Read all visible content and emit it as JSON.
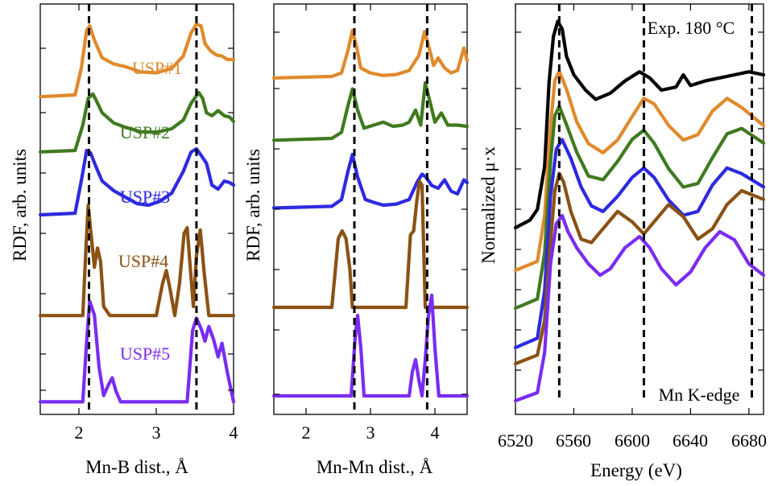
{
  "chart_data": [
    {
      "type": "line",
      "xlabel": "Mn-B dist., Å",
      "ylabel": "RDF, arb. units",
      "xlim": [
        1.5,
        4.0
      ],
      "xticks": [
        "2",
        "3",
        "4"
      ],
      "dashed_lines_x": [
        2.13,
        3.52
      ],
      "series": [
        {
          "name": "USP#1",
          "color": "#e08a2c",
          "offset": 0,
          "x": [
            1.5,
            1.95,
            2.03,
            2.1,
            2.14,
            2.2,
            2.3,
            2.45,
            2.6,
            2.8,
            3.0,
            3.2,
            3.35,
            3.45,
            3.52,
            3.58,
            3.63,
            3.7,
            3.78,
            3.85,
            3.92,
            4.0
          ],
          "y": [
            0.18,
            0.2,
            0.5,
            0.93,
            0.98,
            0.82,
            0.62,
            0.55,
            0.52,
            0.46,
            0.45,
            0.5,
            0.64,
            0.9,
            1.0,
            0.98,
            0.78,
            0.7,
            0.65,
            0.64,
            0.6,
            0.6
          ]
        },
        {
          "name": "USP#2",
          "color": "#3f7a1f",
          "offset": 0,
          "x": [
            1.5,
            1.95,
            2.05,
            2.12,
            2.18,
            2.22,
            2.3,
            2.45,
            2.6,
            2.8,
            3.0,
            3.2,
            3.35,
            3.45,
            3.55,
            3.6,
            3.65,
            3.72,
            3.8,
            3.88,
            3.95,
            4.0
          ],
          "y": [
            0.18,
            0.2,
            0.55,
            0.92,
            0.98,
            0.9,
            0.72,
            0.58,
            0.52,
            0.46,
            0.45,
            0.5,
            0.62,
            0.85,
            1.0,
            0.92,
            0.72,
            0.68,
            0.75,
            0.68,
            0.66,
            0.6
          ]
        },
        {
          "name": "USP#3",
          "color": "#2d2ae0",
          "offset": 0,
          "x": [
            1.5,
            1.95,
            2.03,
            2.1,
            2.15,
            2.22,
            2.3,
            2.45,
            2.6,
            2.75,
            2.9,
            3.05,
            3.2,
            3.35,
            3.45,
            3.52,
            3.58,
            3.65,
            3.72,
            3.8,
            3.88,
            3.95,
            4.0
          ],
          "y": [
            0.18,
            0.2,
            0.6,
            0.98,
            0.95,
            0.78,
            0.6,
            0.48,
            0.4,
            0.32,
            0.3,
            0.35,
            0.45,
            0.72,
            0.96,
            1.0,
            0.92,
            0.82,
            0.55,
            0.5,
            0.6,
            0.58,
            0.55
          ]
        },
        {
          "name": "USP#4",
          "color": "#8b5214",
          "offset": 0,
          "x": [
            1.5,
            2.05,
            2.09,
            2.12,
            2.16,
            2.2,
            2.24,
            2.28,
            2.32,
            2.4,
            3.0,
            3.08,
            3.13,
            3.18,
            3.24,
            3.3,
            3.36,
            3.4,
            3.44,
            3.48,
            3.52,
            3.57,
            3.62,
            3.68,
            4.0
          ],
          "y": [
            0.02,
            0.02,
            0.6,
            1.0,
            0.72,
            0.45,
            0.62,
            0.5,
            0.1,
            0.02,
            0.02,
            0.3,
            0.42,
            0.25,
            0.02,
            0.3,
            0.75,
            0.8,
            0.45,
            0.1,
            0.55,
            0.78,
            0.4,
            0.02,
            0.02
          ]
        },
        {
          "name": "USP#5",
          "color": "#7a2cf0",
          "offset": 0,
          "x": [
            1.5,
            2.05,
            2.1,
            2.14,
            2.2,
            2.26,
            2.32,
            2.38,
            2.43,
            2.48,
            2.54,
            3.4,
            3.47,
            3.52,
            3.58,
            3.63,
            3.68,
            3.74,
            3.8,
            3.85,
            3.92,
            4.0
          ],
          "y": [
            0.02,
            0.02,
            0.6,
            0.98,
            0.85,
            0.35,
            0.08,
            0.18,
            0.25,
            0.12,
            0.02,
            0.02,
            0.7,
            0.82,
            0.72,
            0.6,
            0.74,
            0.62,
            0.45,
            0.58,
            0.3,
            0.02
          ]
        }
      ]
    },
    {
      "type": "line",
      "xlabel": "Mn-Mn dist., Å",
      "ylabel": "RDF, arb. units",
      "xlim": [
        1.5,
        4.5
      ],
      "xticks": [
        "2",
        "3",
        "4"
      ],
      "dashed_lines_x": [
        2.75,
        3.88
      ],
      "series": [
        {
          "name": "USP#1",
          "color": "#e08a2c",
          "x": [
            1.5,
            2.4,
            2.55,
            2.65,
            2.72,
            2.78,
            2.85,
            3.0,
            3.2,
            3.4,
            3.6,
            3.75,
            3.84,
            3.9,
            3.98,
            4.05,
            4.15,
            4.25,
            4.35,
            4.45,
            4.5
          ],
          "y": [
            0.05,
            0.08,
            0.15,
            0.6,
            1.0,
            0.7,
            0.25,
            0.15,
            0.1,
            0.12,
            0.2,
            0.5,
            0.98,
            0.7,
            0.3,
            0.45,
            0.25,
            0.15,
            0.2,
            0.65,
            0.4
          ]
        },
        {
          "name": "USP#2",
          "color": "#3f7a1f",
          "x": [
            1.5,
            2.4,
            2.55,
            2.65,
            2.72,
            2.8,
            2.9,
            3.05,
            3.2,
            3.35,
            3.5,
            3.6,
            3.7,
            3.78,
            3.85,
            3.92,
            4.0,
            4.1,
            4.2,
            4.35,
            4.5
          ],
          "y": [
            0.05,
            0.08,
            0.18,
            0.62,
            0.9,
            0.55,
            0.25,
            0.3,
            0.35,
            0.28,
            0.3,
            0.35,
            0.55,
            0.3,
            1.0,
            0.7,
            0.35,
            0.5,
            0.3,
            0.3,
            0.28
          ]
        },
        {
          "name": "USP#3",
          "color": "#2d2ae0",
          "x": [
            1.5,
            2.4,
            2.55,
            2.65,
            2.72,
            2.8,
            2.92,
            3.05,
            3.2,
            3.4,
            3.6,
            3.72,
            3.8,
            3.86,
            3.95,
            4.05,
            4.15,
            4.25,
            4.35,
            4.45,
            4.5
          ],
          "y": [
            0.05,
            0.08,
            0.2,
            0.7,
            1.0,
            0.6,
            0.2,
            0.15,
            0.1,
            0.12,
            0.2,
            0.5,
            0.65,
            0.6,
            0.45,
            0.4,
            0.55,
            0.35,
            0.3,
            0.55,
            0.5
          ]
        },
        {
          "name": "USP#4",
          "color": "#8b5214",
          "x": [
            1.5,
            2.4,
            2.45,
            2.5,
            2.56,
            2.62,
            2.68,
            2.72,
            3.55,
            3.62,
            3.67,
            3.72,
            3.76,
            3.8,
            3.85,
            4.5
          ],
          "y": [
            0.0,
            0.0,
            0.45,
            0.9,
            1.0,
            0.9,
            0.5,
            0.0,
            0.0,
            0.95,
            1.0,
            1.4,
            1.65,
            1.6,
            0.0,
            0.0
          ]
        },
        {
          "name": "USP#5",
          "color": "#7a2cf0",
          "x": [
            1.5,
            2.7,
            2.76,
            2.8,
            2.85,
            2.9,
            3.6,
            3.65,
            3.7,
            3.75,
            3.8,
            3.85,
            3.9,
            3.95,
            4.0,
            4.06,
            4.5
          ],
          "y": [
            0.0,
            0.0,
            0.7,
            1.0,
            0.6,
            0.0,
            0.0,
            0.3,
            0.45,
            0.2,
            0.0,
            0.45,
            1.0,
            1.25,
            0.6,
            0.0,
            0.0
          ]
        }
      ]
    },
    {
      "type": "line",
      "xlabel": "Energy (eV)",
      "ylabel": "Normalized μ·x",
      "xlim": [
        6520,
        6690
      ],
      "xticks": [
        "6520",
        "6560",
        "6600",
        "6640",
        "6680"
      ],
      "dashed_lines_x": [
        6550,
        6608,
        6682
      ],
      "annotations": [
        "Exp. 180 °C",
        "Mn K-edge"
      ],
      "series": [
        {
          "name": "Exp. 180 °C",
          "color": "#000000",
          "x": [
            6520,
            6530,
            6535,
            6540,
            6543,
            6546,
            6549,
            6552,
            6555,
            6560,
            6568,
            6575,
            6585,
            6595,
            6605,
            6612,
            6620,
            6630,
            6635,
            6640,
            6650,
            6660,
            6670,
            6680,
            6690
          ],
          "y": [
            0.0,
            0.05,
            0.12,
            0.4,
            0.95,
            1.25,
            1.35,
            1.3,
            1.12,
            1.0,
            0.9,
            0.84,
            0.88,
            0.96,
            1.02,
            0.98,
            0.9,
            0.92,
            1.0,
            0.93,
            0.96,
            0.98,
            1.0,
            1.02,
            1.0
          ]
        },
        {
          "name": "USP#1",
          "color": "#e08a2c",
          "x": [
            6520,
            6535,
            6540,
            6544,
            6547,
            6550,
            6555,
            6562,
            6570,
            6580,
            6590,
            6600,
            6608,
            6615,
            6625,
            6635,
            6645,
            6655,
            6665,
            6675,
            6690
          ],
          "y": [
            0.0,
            0.05,
            0.3,
            0.8,
            1.05,
            1.1,
            1.0,
            0.82,
            0.7,
            0.65,
            0.72,
            0.85,
            0.95,
            0.92,
            0.8,
            0.72,
            0.75,
            0.88,
            0.95,
            0.9,
            0.8
          ]
        },
        {
          "name": "USP#2",
          "color": "#3f7a1f",
          "x": [
            6520,
            6535,
            6540,
            6544,
            6547,
            6550,
            6555,
            6562,
            6570,
            6580,
            6590,
            6600,
            6608,
            6615,
            6625,
            6635,
            6645,
            6655,
            6665,
            6675,
            6690
          ],
          "y": [
            0.0,
            0.05,
            0.3,
            0.8,
            1.05,
            1.1,
            1.0,
            0.85,
            0.72,
            0.7,
            0.8,
            0.92,
            0.97,
            0.9,
            0.76,
            0.66,
            0.68,
            0.82,
            0.95,
            0.98,
            0.9
          ]
        },
        {
          "name": "USP#3",
          "color": "#2d2ae0",
          "x": [
            6520,
            6535,
            6540,
            6544,
            6548,
            6552,
            6558,
            6565,
            6572,
            6580,
            6590,
            6600,
            6608,
            6615,
            6625,
            6635,
            6645,
            6655,
            6665,
            6675,
            6690
          ],
          "y": [
            0.0,
            0.05,
            0.3,
            0.8,
            1.05,
            1.1,
            1.0,
            0.85,
            0.75,
            0.72,
            0.8,
            0.9,
            0.95,
            0.9,
            0.78,
            0.7,
            0.72,
            0.86,
            0.95,
            0.92,
            0.85
          ]
        },
        {
          "name": "USP#4",
          "color": "#8b5214",
          "x": [
            6520,
            6535,
            6540,
            6544,
            6547,
            6550,
            6553,
            6558,
            6565,
            6572,
            6580,
            6590,
            6600,
            6608,
            6615,
            6625,
            6635,
            6645,
            6655,
            6665,
            6675,
            6690
          ],
          "y": [
            0.0,
            0.05,
            0.25,
            0.7,
            1.0,
            1.1,
            1.05,
            0.88,
            0.72,
            0.7,
            0.78,
            0.88,
            0.82,
            0.75,
            0.82,
            0.92,
            0.85,
            0.72,
            0.78,
            0.92,
            1.0,
            0.95
          ]
        },
        {
          "name": "USP#5",
          "color": "#7a2cf0",
          "x": [
            6520,
            6535,
            6540,
            6544,
            6548,
            6552,
            6556,
            6562,
            6570,
            6578,
            6585,
            6595,
            6605,
            6612,
            6620,
            6630,
            6640,
            6650,
            6660,
            6670,
            6680,
            6690
          ],
          "y": [
            0.0,
            0.05,
            0.3,
            0.85,
            1.1,
            1.15,
            1.05,
            0.95,
            0.85,
            0.78,
            0.82,
            0.95,
            1.02,
            0.95,
            0.82,
            0.72,
            0.8,
            0.95,
            1.05,
            1.0,
            0.85,
            0.78
          ]
        }
      ]
    }
  ]
}
